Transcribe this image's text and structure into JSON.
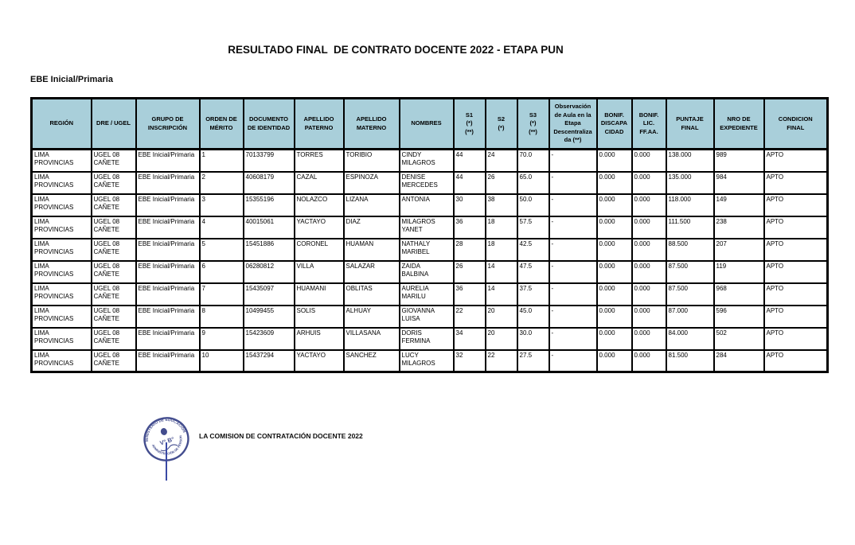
{
  "title": "RESULTADO FINAL  DE CONTRATO DOCENTE 2022 - ETAPA PUN",
  "subtitle": "EBE Inicial/Primaria",
  "colors": {
    "header_bg": "#a9cfda",
    "table_border": "#000000",
    "seal_ink": "#2a357f"
  },
  "table": {
    "headers": [
      "REGIÓN",
      "DRE / UGEL",
      "GRUPO DE\nINSCRIPCIÓN",
      "ORDEN DE\nMÉRITO",
      "DOCUMENTO\nDE IDENTIDAD",
      "APELLIDO\nPATERNO",
      "APELLIDO\nMATERNO",
      "NOMBRES",
      "S1\n(*)\n(**)",
      "S2\n(*)",
      "S3\n(*)\n(**)",
      "Observación\nde Aula en la\nEtapa\nDescentraliza\nda (**)",
      "BONIF.\nDISCAPA\nCIDAD",
      "BONIF.\nLIC.\nFF.AA.",
      "PUNTAJE\nFINAL",
      "NRO DE\nEXPEDIENTE",
      "CONDICION\nFINAL"
    ],
    "rows": [
      [
        "LIMA PROVINCIAS",
        "UGEL 08\nCAÑETE",
        "EBE Inicial/Primaria",
        "1",
        "70133799",
        "TORRES",
        "TORIBIO",
        "CINDY\nMILAGROS",
        "44",
        "24",
        "70.0",
        "-",
        "0.000",
        "0.000",
        "138.000",
        "989",
        "APTO"
      ],
      [
        "LIMA PROVINCIAS",
        "UGEL 08\nCAÑETE",
        "EBE Inicial/Primaria",
        "2",
        "40608179",
        "CAZAL",
        "ESPINOZA",
        "DENISE\nMERCEDES",
        "44",
        "26",
        "65.0",
        "-",
        "0.000",
        "0.000",
        "135.000",
        "984",
        "APTO"
      ],
      [
        "LIMA PROVINCIAS",
        "UGEL 08\nCAÑETE",
        "EBE Inicial/Primaria",
        "3",
        "15355196",
        "NOLAZCO",
        "LIZANA",
        "ANTONIA",
        "30",
        "38",
        "50.0",
        "-",
        "0.000",
        "0.000",
        "118.000",
        "149",
        "APTO"
      ],
      [
        "LIMA PROVINCIAS",
        "UGEL 08\nCAÑETE",
        "EBE Inicial/Primaria",
        "4",
        "40015061",
        "YACTAYO",
        "DIAZ",
        "MILAGROS\nYANET",
        "36",
        "18",
        "57.5",
        "-",
        "0.000",
        "0.000",
        "111.500",
        "238",
        "APTO"
      ],
      [
        "LIMA PROVINCIAS",
        "UGEL 08\nCAÑETE",
        "EBE Inicial/Primaria",
        "5",
        "15451886",
        "CORONEL",
        "HUAMAN",
        "NATHALY\nMARIBEL",
        "28",
        "18",
        "42.5",
        "-",
        "0.000",
        "0.000",
        "88.500",
        "207",
        "APTO"
      ],
      [
        "LIMA PROVINCIAS",
        "UGEL 08\nCAÑETE",
        "EBE Inicial/Primaria",
        "6",
        "06280812",
        "VILLA",
        "SALAZAR",
        "ZAIDA\nBALBINA",
        "26",
        "14",
        "47.5",
        "-",
        "0.000",
        "0.000",
        "87.500",
        "119",
        "APTO"
      ],
      [
        "LIMA PROVINCIAS",
        "UGEL 08\nCAÑETE",
        "EBE Inicial/Primaria",
        "7",
        "15435097",
        "HUAMANI",
        "OBLITAS",
        "AURELIA\nMARILU",
        "36",
        "14",
        "37.5",
        "-",
        "0.000",
        "0.000",
        "87.500",
        "968",
        "APTO"
      ],
      [
        "LIMA PROVINCIAS",
        "UGEL 08\nCAÑETE",
        "EBE Inicial/Primaria",
        "8",
        "10499455",
        "SOLIS",
        "ALHUAY",
        "GIOVANNA\nLUISA",
        "22",
        "20",
        "45.0",
        "-",
        "0.000",
        "0.000",
        "87.000",
        "596",
        "APTO"
      ],
      [
        "LIMA PROVINCIAS",
        "UGEL 08\nCAÑETE",
        "EBE Inicial/Primaria",
        "9",
        "15423609",
        "ARHUIS",
        "VILLASANA",
        "DORIS\nFERMINA",
        "34",
        "20",
        "30.0",
        "-",
        "0.000",
        "0.000",
        "84.000",
        "502",
        "APTO"
      ],
      [
        "LIMA PROVINCIAS",
        "UGEL 08\nCAÑETE",
        "EBE Inicial/Primaria",
        "10",
        "15437294",
        "YACTAYO",
        "SANCHEZ",
        "LUCY\nMILAGROS",
        "32",
        "22",
        "27.5",
        "-",
        "0.000",
        "0.000",
        "81.500",
        "284",
        "APTO"
      ]
    ]
  },
  "footer": {
    "commission_label": "LA COMISION DE CONTRATACIÓN DOCENTE 2022",
    "seal_ring_text_top": "MINISTERIO DE EDUCACIÓN",
    "seal_ring_text_bottom": "ADMINISTRACIÓN DE PERSONAL",
    "seal_center_text": "V° B°"
  }
}
